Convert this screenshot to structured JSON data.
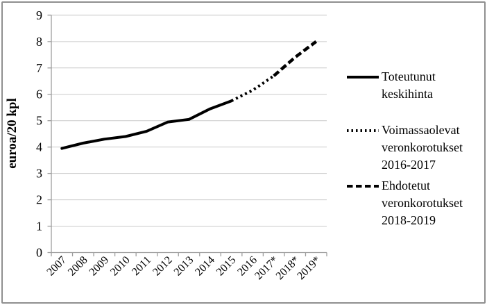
{
  "chart_data": {
    "type": "line",
    "title": "",
    "xlabel": "",
    "ylabel": "euroa/20 kpl",
    "ylim": [
      0,
      9
    ],
    "yticks": [
      0,
      1,
      2,
      3,
      4,
      5,
      6,
      7,
      8,
      9
    ],
    "grid": "horizontal",
    "legend_position": "right",
    "categories": [
      "2007",
      "2008",
      "2009",
      "2010",
      "2011",
      "2012",
      "2013",
      "2014",
      "2015",
      "2016",
      "2017*",
      "2018*",
      "2019*"
    ],
    "series": [
      {
        "name": "Toteutunut keskihinta",
        "style": "solid",
        "x": [
          "2007",
          "2008",
          "2009",
          "2010",
          "2011",
          "2012",
          "2013",
          "2014",
          "2015"
        ],
        "values": [
          3.95,
          4.15,
          4.3,
          4.4,
          4.6,
          4.95,
          5.05,
          5.45,
          5.75
        ]
      },
      {
        "name": "Voimassaolevat veronkorotukset 2016-2017",
        "style": "dotted",
        "x": [
          "2015",
          "2016",
          "2017*"
        ],
        "values": [
          5.75,
          6.15,
          6.7
        ]
      },
      {
        "name": "Ehdotetut veronkorotukset 2018-2019",
        "style": "dashed",
        "x": [
          "2017*",
          "2018*",
          "2019*"
        ],
        "values": [
          6.7,
          7.4,
          8.0
        ]
      }
    ]
  },
  "legend": {
    "items": [
      {
        "style": "solid",
        "lines": [
          "Toteutunut",
          "keskihinta"
        ]
      },
      {
        "style": "dotted",
        "lines": [
          "Voimassaolevat",
          "veronkorotukset",
          "2016-2017"
        ]
      },
      {
        "style": "dashed",
        "lines": [
          "Ehdotetut",
          "veronkorotukset",
          "2018-2019"
        ]
      }
    ]
  },
  "colors": {
    "line": "#000000",
    "gridline": "#c9c9c9",
    "axis": "#9d9d9d",
    "border": "#8f8f8f",
    "text": "#000000"
  }
}
